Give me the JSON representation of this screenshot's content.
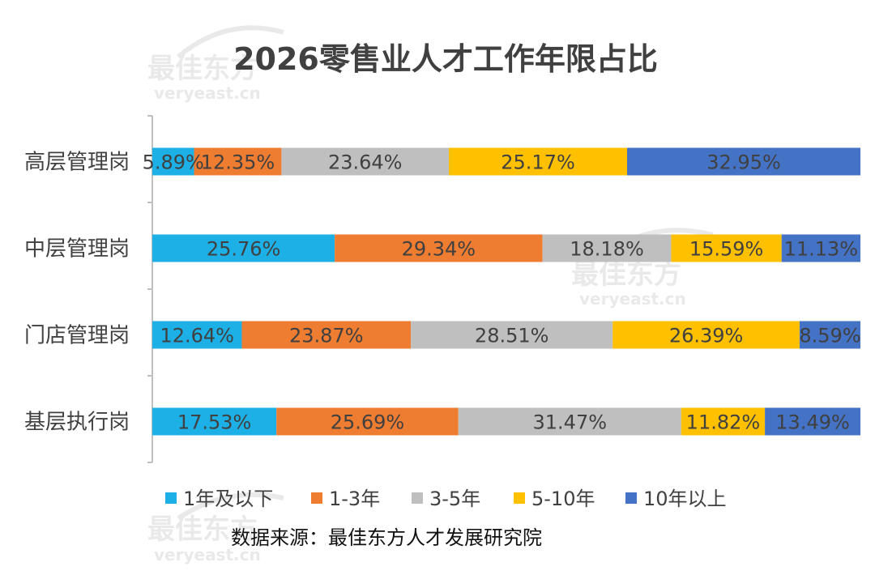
{
  "chart_data": {
    "type": "bar",
    "orientation": "horizontal",
    "stacked": "percent",
    "title": "2026零售业人才工作年限占比",
    "categories": [
      "高层管理岗",
      "中层管理岗",
      "门店管理岗",
      "基层执行岗"
    ],
    "series": [
      {
        "name": "1年及以下",
        "color": "#1CB0E6",
        "values": [
          5.89,
          25.76,
          12.64,
          17.53
        ],
        "labels": [
          "5.89%",
          "25.76%",
          "12.64%",
          "17.53%"
        ]
      },
      {
        "name": "1-3年",
        "color": "#EF7D31",
        "values": [
          12.35,
          29.34,
          23.87,
          25.69
        ],
        "labels": [
          "12.35%",
          "29.34%",
          "23.87%",
          "25.69%"
        ]
      },
      {
        "name": "3-5年",
        "color": "#BFBFBF",
        "values": [
          23.64,
          18.18,
          28.51,
          31.47
        ],
        "labels": [
          "23.64%",
          "18.18%",
          "28.51%",
          "31.47%"
        ]
      },
      {
        "name": "5-10年",
        "color": "#FFC000",
        "values": [
          25.17,
          15.59,
          26.39,
          11.82
        ],
        "labels": [
          "25.17%",
          "15.59%",
          "26.39%",
          "11.82%"
        ]
      },
      {
        "name": "10年以上",
        "color": "#4472C4",
        "values": [
          32.95,
          11.13,
          8.59,
          13.49
        ],
        "labels": [
          "32.95%",
          "11.13%",
          "8.59%",
          "13.49%"
        ]
      }
    ],
    "legend_position": "bottom",
    "grid": false,
    "source_note": "数据来源：最佳东方人才发展研究院"
  },
  "watermark": {
    "brand": "最佳东方",
    "site": "veryeast.cn"
  }
}
